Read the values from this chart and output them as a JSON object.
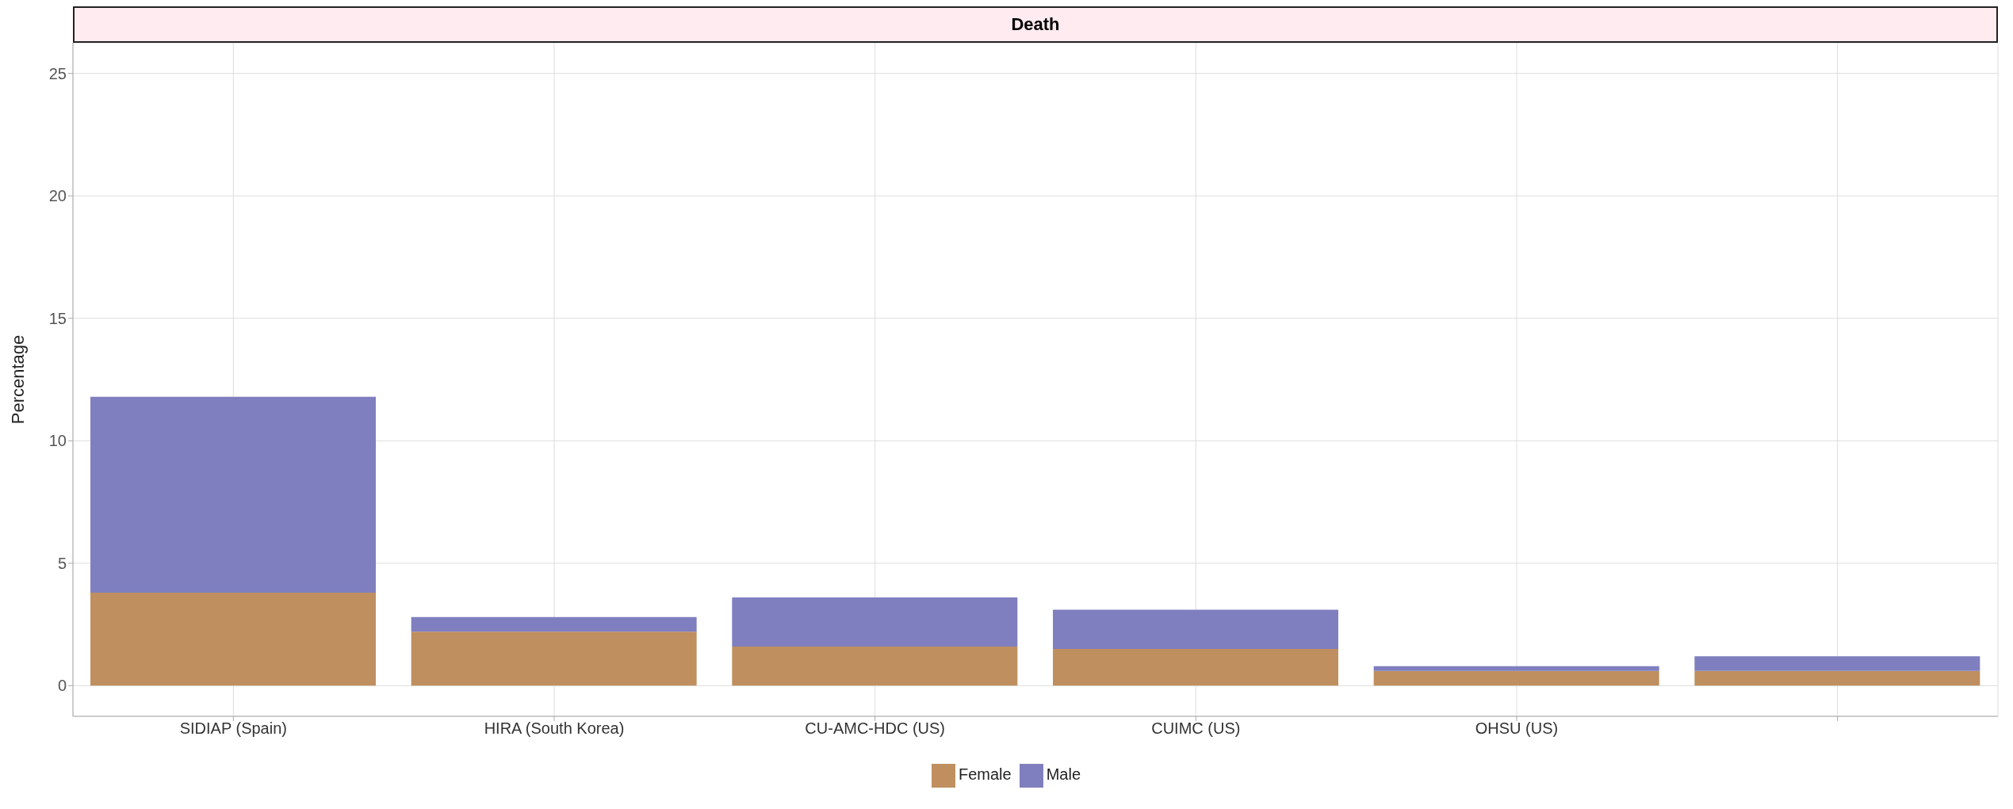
{
  "chart_data": {
    "type": "bar",
    "title": "Death",
    "ylabel": "Percentage",
    "categories": [
      "SIDIAP (Spain)",
      "HIRA (South Korea)",
      "CU-AMC-HDC (US)",
      "CUIMC (US)",
      "OHSU (US)",
      null
    ],
    "series": [
      {
        "name": "Female",
        "color": "#bf8f5f",
        "values": [
          3.8,
          2.2,
          1.6,
          1.5,
          0.6,
          0.6
        ]
      },
      {
        "name": "Male",
        "color": "#7f7fbf",
        "values": [
          8.0,
          0.6,
          2.0,
          1.6,
          0.2,
          0.6
        ]
      }
    ],
    "stacked": true,
    "ylim": [
      -1.25,
      26.25
    ],
    "yticks": [
      0,
      5,
      10,
      15,
      20,
      25
    ],
    "grid": true,
    "legend": "bottom"
  }
}
